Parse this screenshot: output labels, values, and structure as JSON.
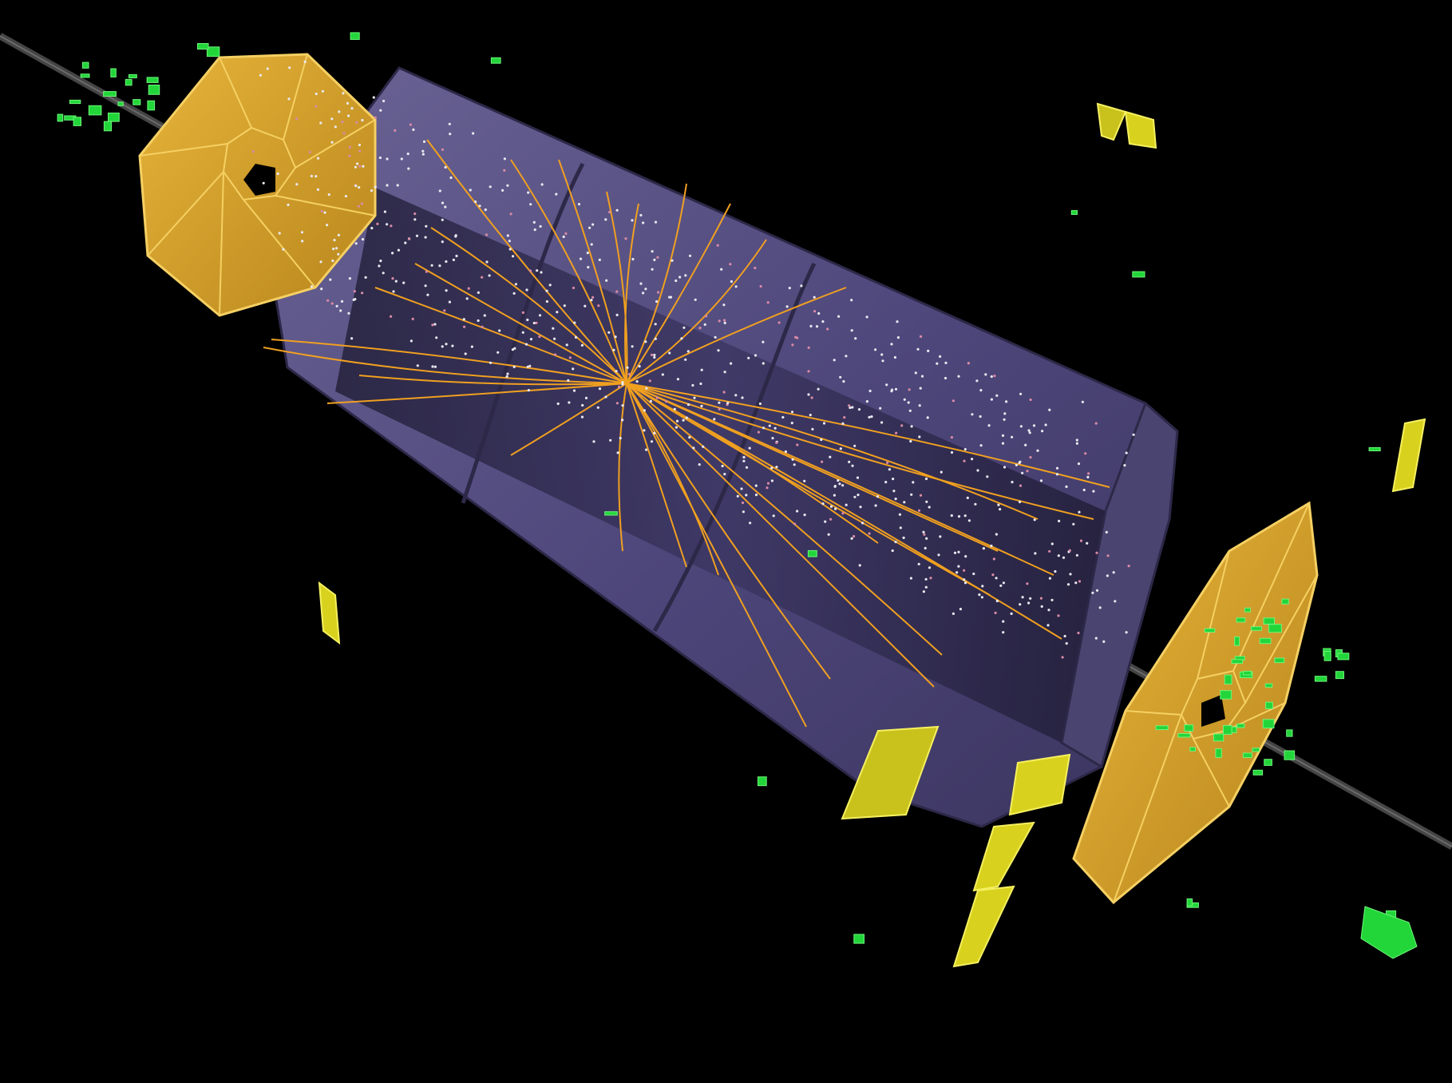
{
  "scene": {
    "background": "#000000",
    "colors": {
      "barrel": "#57507f",
      "barrel_dark": "#3a3560",
      "barrel_inner": "#2b2646",
      "endcap": "#d9a52c",
      "endcap_edge": "#f2c94c",
      "track": "#f0a020",
      "hit": "#e8e8f0",
      "hit_pink": "#d98aa6",
      "beampipe": "#3a3a3a",
      "muon_chamber": "#d8d21e",
      "muon_chamber_edge": "#f5f060",
      "calo_cell": "#22d63a",
      "calo_cell_edge": "#6ff57a"
    },
    "layers": [
      "beampipe-icon",
      "barrel-detector-icon",
      "endcap-disk-icon",
      "particle-track-icon",
      "tracker-hit-icon",
      "muon-chamber-icon",
      "calorimeter-cell-icon"
    ]
  }
}
